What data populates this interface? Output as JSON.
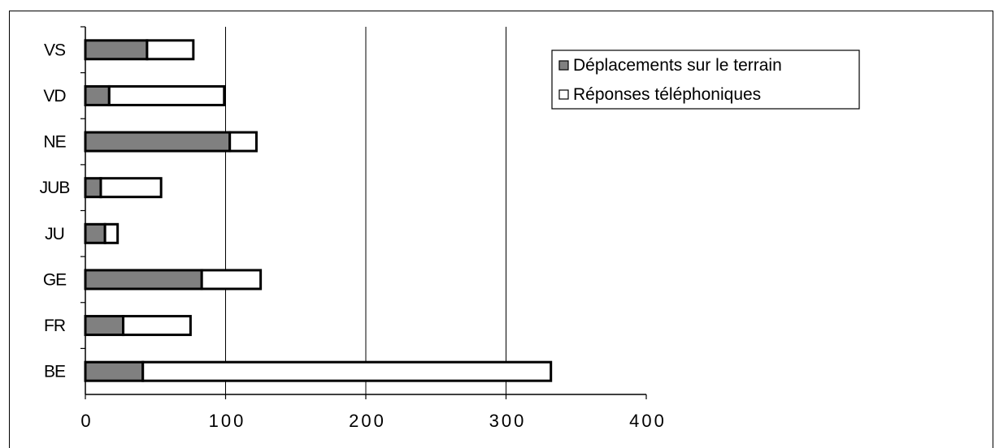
{
  "chart_data": {
    "type": "bar",
    "orientation": "horizontal",
    "stacked": true,
    "categories": [
      "VS",
      "VD",
      "NE",
      "JUB",
      "JU",
      "GE",
      "FR",
      "BE"
    ],
    "series": [
      {
        "name": "Déplacements sur le terrain",
        "values": [
          44,
          17,
          103,
          11,
          14,
          83,
          27,
          41
        ],
        "color": "#808080"
      },
      {
        "name": "Réponses téléphoniques",
        "values": [
          33,
          82,
          19,
          43,
          9,
          42,
          48,
          291
        ],
        "color": "#ffffff"
      }
    ],
    "xlim": [
      0,
      400
    ],
    "xticks": [
      "0",
      "100",
      "200",
      "300",
      "400"
    ],
    "title": "",
    "xlabel": "",
    "ylabel": "",
    "grid": "vertical",
    "legend_position": "top-right"
  }
}
